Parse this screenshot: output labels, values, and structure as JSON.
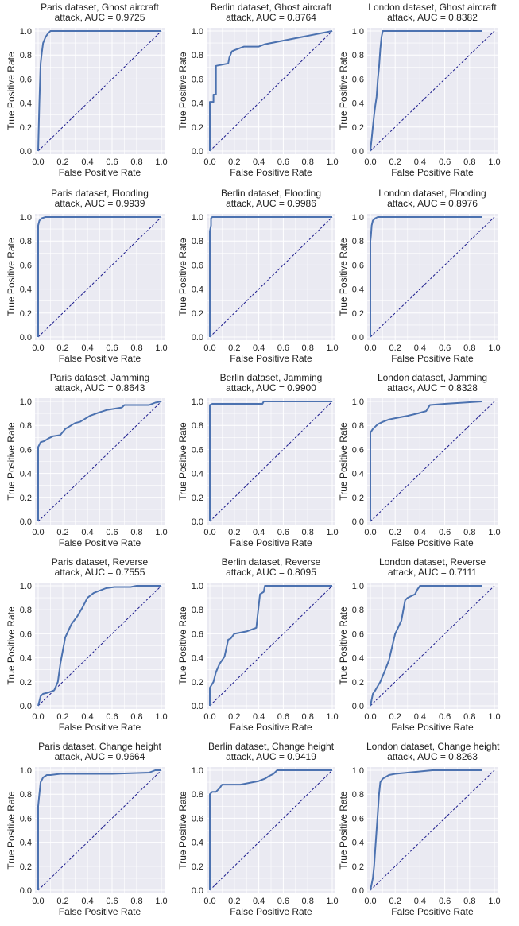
{
  "figure": {
    "xlabel": "False Positive Rate",
    "ylabel": "True Positive Rate",
    "tick_labels": [
      "0.0",
      "0.2",
      "0.4",
      "0.6",
      "0.8",
      "1.0"
    ],
    "colors": {
      "background": "#eaeaf2",
      "grid": "#ffffff",
      "roc": "#4c72b0",
      "diagonal": "#1a1a8c"
    }
  },
  "chart_data": [
    {
      "type": "line",
      "row": 0,
      "col": 0,
      "title_line1": "Paris dataset, Ghost aircraft",
      "title_line2": "attack, AUC = 0.9725",
      "auc": 0.9725,
      "xlim": [
        0,
        1
      ],
      "ylim": [
        0,
        1
      ],
      "x": [
        0,
        0.01,
        0.02,
        0.03,
        0.04,
        0.06,
        0.08,
        0.1,
        0.12,
        1
      ],
      "y": [
        0,
        0.4,
        0.73,
        0.82,
        0.9,
        0.95,
        0.98,
        1,
        1,
        1
      ]
    },
    {
      "type": "line",
      "row": 0,
      "col": 1,
      "title_line1": "Berlin dataset, Ghost aircraft",
      "title_line2": "attack, AUC = 0.8764",
      "auc": 0.8764,
      "xlim": [
        0,
        1
      ],
      "ylim": [
        0,
        1
      ],
      "x": [
        0,
        0,
        0.03,
        0.03,
        0.05,
        0.05,
        0.15,
        0.16,
        0.18,
        0.2,
        0.28,
        0.4,
        0.45,
        1
      ],
      "y": [
        0,
        0.41,
        0.41,
        0.47,
        0.47,
        0.71,
        0.73,
        0.78,
        0.83,
        0.84,
        0.87,
        0.87,
        0.89,
        1
      ]
    },
    {
      "type": "line",
      "row": 0,
      "col": 2,
      "title_line1": "London dataset, Ghost aircraft",
      "title_line2": "attack, AUC = 0.8382",
      "auc": 0.8382,
      "xlim": [
        0,
        1
      ],
      "ylim": [
        0,
        1
      ],
      "x": [
        0,
        0.02,
        0.03,
        0.04,
        0.05,
        0.06,
        0.07,
        0.08,
        0.09,
        0.1,
        0.9
      ],
      "y": [
        0,
        0.2,
        0.3,
        0.38,
        0.45,
        0.6,
        0.7,
        0.85,
        0.95,
        1,
        1
      ]
    },
    {
      "type": "line",
      "row": 1,
      "col": 0,
      "title_line1": "Paris dataset, Flooding",
      "title_line2": "attack, AUC = 0.9939",
      "auc": 0.9939,
      "xlim": [
        0,
        1
      ],
      "ylim": [
        0,
        1
      ],
      "x": [
        0,
        0,
        0.01,
        0.03,
        0.06,
        1
      ],
      "y": [
        0,
        0.93,
        0.97,
        0.99,
        1,
        1
      ]
    },
    {
      "type": "line",
      "row": 1,
      "col": 1,
      "title_line1": "Berlin dataset, Flooding",
      "title_line2": "attack, AUC = 0.9986",
      "auc": 0.9986,
      "xlim": [
        0,
        1
      ],
      "ylim": [
        0,
        1
      ],
      "x": [
        0,
        0,
        0.01,
        0.01,
        0.02,
        1
      ],
      "y": [
        0,
        0.88,
        0.93,
        0.99,
        1,
        1
      ]
    },
    {
      "type": "line",
      "row": 1,
      "col": 2,
      "title_line1": "London dataset, Flooding",
      "title_line2": "attack, AUC = 0.8976",
      "auc": 0.8976,
      "xlim": [
        0,
        1
      ],
      "ylim": [
        0,
        1
      ],
      "x": [
        0,
        0,
        0.005,
        0.01,
        0.02,
        0.04,
        0.06,
        0.9
      ],
      "y": [
        0,
        0.8,
        0.85,
        0.93,
        0.97,
        0.99,
        1,
        1
      ]
    },
    {
      "type": "line",
      "row": 2,
      "col": 0,
      "title_line1": "Paris dataset, Jamming",
      "title_line2": "attack, AUC = 0.8643",
      "auc": 0.8643,
      "xlim": [
        0,
        1
      ],
      "ylim": [
        0,
        1
      ],
      "x": [
        0,
        0,
        0.02,
        0.05,
        0.08,
        0.12,
        0.18,
        0.22,
        0.3,
        0.34,
        0.42,
        0.5,
        0.56,
        0.62,
        0.68,
        0.7,
        0.9,
        0.95,
        1
      ],
      "y": [
        0,
        0.62,
        0.66,
        0.67,
        0.69,
        0.71,
        0.72,
        0.77,
        0.82,
        0.83,
        0.88,
        0.91,
        0.93,
        0.94,
        0.95,
        0.97,
        0.97,
        0.99,
        1
      ]
    },
    {
      "type": "line",
      "row": 2,
      "col": 1,
      "title_line1": "Berlin dataset, Jamming",
      "title_line2": "attack, AUC = 0.9900",
      "auc": 0.99,
      "xlim": [
        0,
        1
      ],
      "ylim": [
        0,
        1
      ],
      "x": [
        0,
        0,
        0.02,
        0.43,
        0.44,
        1
      ],
      "y": [
        0,
        0.97,
        0.98,
        0.98,
        1,
        1
      ]
    },
    {
      "type": "line",
      "row": 2,
      "col": 2,
      "title_line1": "London dataset, Jamming",
      "title_line2": "attack, AUC = 0.8328",
      "auc": 0.8328,
      "xlim": [
        0,
        1
      ],
      "ylim": [
        0,
        1
      ],
      "x": [
        0,
        0,
        0.02,
        0.04,
        0.06,
        0.1,
        0.15,
        0.2,
        0.3,
        0.38,
        0.45,
        0.48,
        0.6,
        0.9
      ],
      "y": [
        0,
        0.74,
        0.77,
        0.79,
        0.81,
        0.83,
        0.85,
        0.86,
        0.88,
        0.9,
        0.92,
        0.97,
        0.98,
        1
      ]
    },
    {
      "type": "line",
      "row": 3,
      "col": 0,
      "title_line1": "Paris dataset, Reverse",
      "title_line2": "attack, AUC = 0.7555",
      "auc": 0.7555,
      "xlim": [
        0,
        1
      ],
      "ylim": [
        0,
        1
      ],
      "x": [
        0,
        0.02,
        0.04,
        0.08,
        0.13,
        0.16,
        0.18,
        0.22,
        0.27,
        0.32,
        0.36,
        0.4,
        0.45,
        0.5,
        0.55,
        0.62,
        0.75,
        0.8,
        1
      ],
      "y": [
        0,
        0.08,
        0.1,
        0.11,
        0.13,
        0.2,
        0.35,
        0.57,
        0.68,
        0.75,
        0.82,
        0.9,
        0.94,
        0.96,
        0.98,
        0.99,
        0.99,
        1,
        1
      ]
    },
    {
      "type": "line",
      "row": 3,
      "col": 1,
      "title_line1": "Berlin dataset, Reverse",
      "title_line2": "attack, AUC = 0.8095",
      "auc": 0.8095,
      "xlim": [
        0,
        1
      ],
      "ylim": [
        0,
        1
      ],
      "x": [
        0,
        0,
        0.03,
        0.05,
        0.08,
        0.12,
        0.15,
        0.17,
        0.2,
        0.25,
        0.3,
        0.38,
        0.39,
        0.41,
        0.44,
        0.45,
        0.6,
        1
      ],
      "y": [
        0,
        0.15,
        0.2,
        0.28,
        0.35,
        0.41,
        0.55,
        0.56,
        0.6,
        0.61,
        0.62,
        0.65,
        0.75,
        0.93,
        0.95,
        1,
        1,
        1
      ]
    },
    {
      "type": "line",
      "row": 3,
      "col": 2,
      "title_line1": "London dataset, Reverse",
      "title_line2": "attack, AUC = 0.7111",
      "auc": 0.7111,
      "xlim": [
        0,
        1
      ],
      "ylim": [
        0,
        1
      ],
      "x": [
        0,
        0.02,
        0.04,
        0.08,
        0.12,
        0.15,
        0.2,
        0.25,
        0.28,
        0.3,
        0.36,
        0.38,
        0.4,
        0.9
      ],
      "y": [
        0,
        0.1,
        0.13,
        0.2,
        0.3,
        0.38,
        0.6,
        0.71,
        0.88,
        0.9,
        0.93,
        0.97,
        1,
        1
      ]
    },
    {
      "type": "line",
      "row": 4,
      "col": 0,
      "title_line1": "Paris dataset, Change height",
      "title_line2": "attack, AUC = 0.9664",
      "auc": 0.9664,
      "xlim": [
        0,
        1
      ],
      "ylim": [
        0,
        1
      ],
      "x": [
        0,
        0,
        0.01,
        0.02,
        0.04,
        0.07,
        0.1,
        0.18,
        0.2,
        0.5,
        0.6,
        0.9,
        0.95,
        1
      ],
      "y": [
        0,
        0.7,
        0.8,
        0.9,
        0.94,
        0.96,
        0.96,
        0.97,
        0.97,
        0.97,
        0.97,
        0.98,
        1,
        1
      ]
    },
    {
      "type": "line",
      "row": 4,
      "col": 1,
      "title_line1": "Berlin dataset, Change height",
      "title_line2": "attack, AUC = 0.9419",
      "auc": 0.9419,
      "xlim": [
        0,
        1
      ],
      "ylim": [
        0,
        1
      ],
      "x": [
        0,
        0,
        0.02,
        0.05,
        0.08,
        0.1,
        0.15,
        0.25,
        0.4,
        0.45,
        0.48,
        0.52,
        0.55,
        0.65,
        1
      ],
      "y": [
        0,
        0.8,
        0.82,
        0.82,
        0.85,
        0.88,
        0.88,
        0.88,
        0.91,
        0.93,
        0.95,
        0.97,
        1,
        1,
        1
      ]
    },
    {
      "type": "line",
      "row": 4,
      "col": 2,
      "title_line1": "London dataset, Change height",
      "title_line2": "attack, AUC = 0.8263",
      "auc": 0.8263,
      "xlim": [
        0,
        1
      ],
      "ylim": [
        0,
        1
      ],
      "x": [
        0,
        0.02,
        0.03,
        0.04,
        0.05,
        0.06,
        0.07,
        0.08,
        0.1,
        0.15,
        0.2,
        0.3,
        0.4,
        0.5,
        0.9
      ],
      "y": [
        0,
        0.1,
        0.2,
        0.35,
        0.5,
        0.65,
        0.8,
        0.9,
        0.93,
        0.96,
        0.97,
        0.98,
        0.99,
        1,
        1
      ]
    }
  ]
}
